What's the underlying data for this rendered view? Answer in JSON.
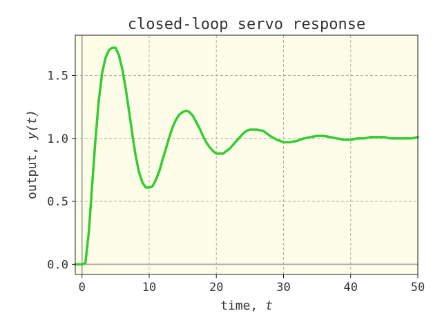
{
  "chart_data": {
    "type": "line",
    "title": "closed-loop servo response",
    "xlabel": {
      "text": "time, ",
      "var": "t"
    },
    "ylabel": {
      "text": "output, ",
      "var": "y(t)"
    },
    "xlim": [
      -1,
      50
    ],
    "ylim": [
      -0.08,
      1.82
    ],
    "xticks": [
      0,
      10,
      20,
      30,
      40,
      50
    ],
    "yticks": [
      0.0,
      0.5,
      1.0,
      1.5
    ],
    "ytick_labels": [
      "0.0",
      "0.5",
      "1.0",
      "1.5"
    ],
    "grid": true,
    "background_color": "#fefee8",
    "series": [
      {
        "color": "#33cc33",
        "x": [
          -1,
          0,
          0.5,
          1,
          1.5,
          2,
          2.5,
          3,
          3.5,
          4,
          4.5,
          5,
          5.5,
          6,
          6.5,
          7,
          7.5,
          8,
          8.5,
          9,
          9.5,
          10,
          10.5,
          11,
          11.5,
          12,
          12.5,
          13,
          13.5,
          14,
          14.5,
          15,
          15.5,
          16,
          16.5,
          17,
          17.5,
          18,
          18.5,
          19,
          19.5,
          20,
          20.5,
          21,
          21.5,
          22,
          22.5,
          23,
          23.5,
          24,
          24.5,
          25,
          26,
          27,
          27.5,
          28,
          29,
          30,
          31,
          32,
          33,
          34,
          35,
          36,
          37,
          38,
          39,
          40,
          41,
          42,
          43,
          44,
          45,
          46,
          47,
          48,
          49,
          50
        ],
        "y": [
          0,
          0,
          0.01,
          0.25,
          0.62,
          0.99,
          1.3,
          1.52,
          1.64,
          1.7,
          1.72,
          1.72,
          1.66,
          1.55,
          1.4,
          1.22,
          1.03,
          0.86,
          0.73,
          0.65,
          0.61,
          0.61,
          0.62,
          0.67,
          0.74,
          0.83,
          0.92,
          1.01,
          1.09,
          1.15,
          1.19,
          1.21,
          1.22,
          1.21,
          1.18,
          1.13,
          1.08,
          1.02,
          0.97,
          0.93,
          0.9,
          0.88,
          0.88,
          0.88,
          0.9,
          0.92,
          0.95,
          0.98,
          1.01,
          1.04,
          1.06,
          1.07,
          1.07,
          1.06,
          1.04,
          1.02,
          0.99,
          0.97,
          0.97,
          0.98,
          1.0,
          1.01,
          1.02,
          1.02,
          1.01,
          1.0,
          0.99,
          0.99,
          1.0,
          1.0,
          1.01,
          1.01,
          1.01,
          1.0,
          1.0,
          1.0,
          1.0,
          1.01
        ]
      }
    ]
  }
}
